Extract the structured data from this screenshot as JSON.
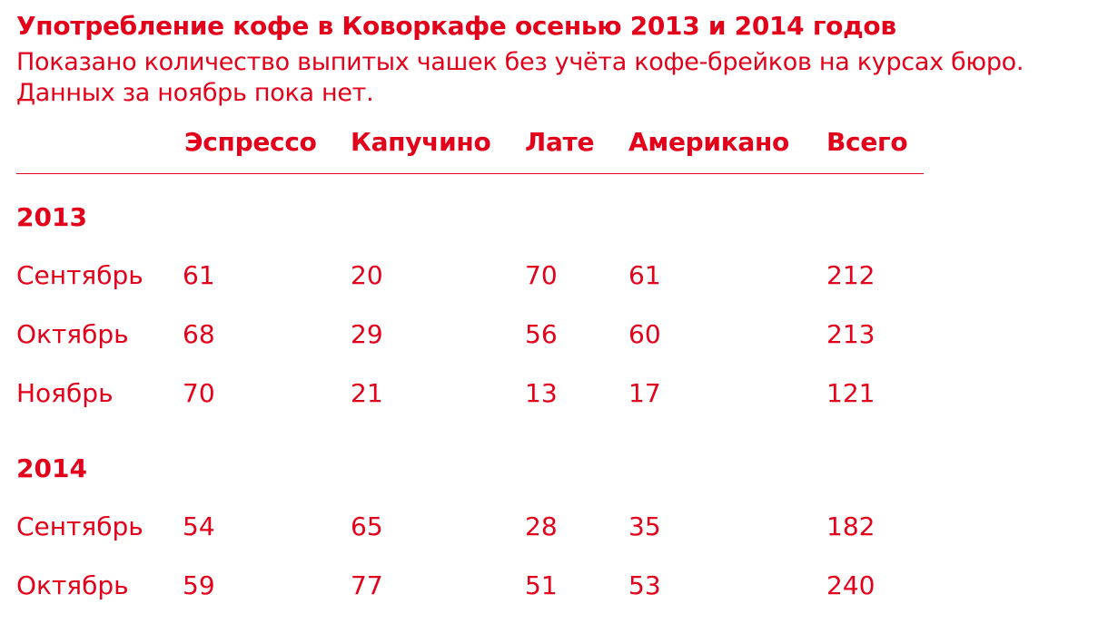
{
  "chart_data": {
    "type": "table",
    "title": "Употребление кофе в Коворкафе осенью 2013 и 2014 годов",
    "subtitle_lines": [
      "Показано количество выпитых чашек без учёта кофе-брейков на курсах бюро.",
      "Данных за ноябрь пока нет."
    ],
    "columns": [
      "Эспрессо",
      "Капучино",
      "Лате",
      "Американо",
      "Всего"
    ],
    "groups": [
      {
        "label": "2013",
        "rows": [
          {
            "label": "Сентябрь",
            "values": [
              61,
              20,
              70,
              61,
              212
            ]
          },
          {
            "label": "Октябрь",
            "values": [
              68,
              29,
              56,
              60,
              213
            ]
          },
          {
            "label": "Ноябрь",
            "values": [
              70,
              21,
              13,
              17,
              121
            ]
          }
        ]
      },
      {
        "label": "2014",
        "rows": [
          {
            "label": "Сентябрь",
            "values": [
              54,
              65,
              28,
              35,
              182
            ]
          },
          {
            "label": "Октябрь",
            "values": [
              59,
              77,
              51,
              53,
              240
            ]
          }
        ]
      }
    ]
  },
  "colors": {
    "accent": "#e3001b",
    "background": "#ffffff"
  }
}
